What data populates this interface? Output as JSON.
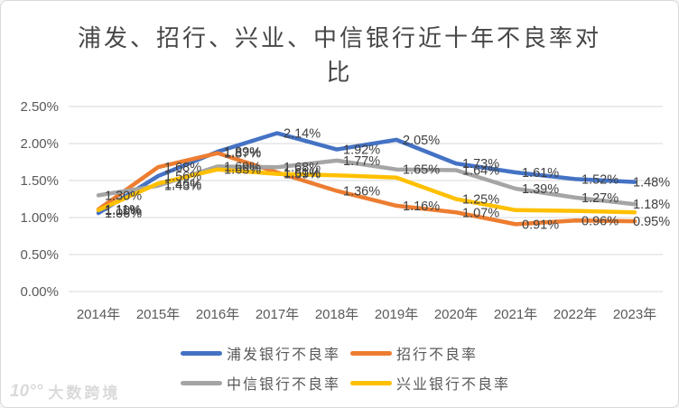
{
  "title": {
    "line1": "浦发、招行、兴业、中信银行近十年不良率对",
    "line2": "比"
  },
  "chart_data": {
    "type": "line",
    "categories": [
      "2014年",
      "2015年",
      "2016年",
      "2017年",
      "2018年",
      "2019年",
      "2020年",
      "2021年",
      "2022年",
      "2023年"
    ],
    "series": [
      {
        "name": "浦发银行不良率",
        "color": "#4472C4",
        "values": [
          1.06,
          1.56,
          1.89,
          2.14,
          1.92,
          2.05,
          1.73,
          1.61,
          1.52,
          1.48
        ]
      },
      {
        "name": "招行不良率",
        "color": "#ED7D31",
        "values": [
          1.11,
          1.68,
          1.87,
          1.61,
          1.36,
          1.16,
          1.07,
          0.91,
          0.96,
          0.95
        ]
      },
      {
        "name": "中信银行不良率",
        "color": "#A5A5A5",
        "values": [
          1.3,
          1.43,
          1.69,
          1.68,
          1.77,
          1.65,
          1.64,
          1.39,
          1.27,
          1.18
        ]
      },
      {
        "name": "兴业银行不良率",
        "color": "#FFC000",
        "values": [
          1.1,
          1.46,
          1.65,
          1.59,
          1.57,
          1.54,
          1.25,
          1.1,
          1.09,
          1.07
        ]
      }
    ],
    "ylim": [
      0,
      2.5
    ],
    "yticks": [
      {
        "v": 0.0,
        "label": "0.00%"
      },
      {
        "v": 0.5,
        "label": "0.50%"
      },
      {
        "v": 1.0,
        "label": "1.00%"
      },
      {
        "v": 1.5,
        "label": "1.50%"
      },
      {
        "v": 2.0,
        "label": "2.00%"
      },
      {
        "v": 2.5,
        "label": "2.50%"
      }
    ],
    "grid": true,
    "legend_position": "bottom",
    "visible_labels": [
      {
        "xi": 0,
        "v": 1.3,
        "text": "1.30%"
      },
      {
        "xi": 0,
        "v": 1.11,
        "text": "1.11%"
      },
      {
        "xi": 0,
        "v": 1.1,
        "text": "1.10%"
      },
      {
        "xi": 0,
        "v": 1.06,
        "text": "1.06%"
      },
      {
        "xi": 1,
        "v": 1.68,
        "text": "1.68%"
      },
      {
        "xi": 1,
        "v": 1.56,
        "text": "1.56%"
      },
      {
        "xi": 1,
        "v": 1.46,
        "text": "1.46%"
      },
      {
        "xi": 1,
        "v": 1.43,
        "text": "1.43%"
      },
      {
        "xi": 2,
        "v": 1.89,
        "text": "1.89%"
      },
      {
        "xi": 2,
        "v": 1.87,
        "text": "1.87%"
      },
      {
        "xi": 2,
        "v": 1.69,
        "text": "1.69%"
      },
      {
        "xi": 2,
        "v": 1.65,
        "text": "1.65%"
      },
      {
        "xi": 3,
        "v": 2.14,
        "text": "2.14%"
      },
      {
        "xi": 3,
        "v": 1.68,
        "text": "1.68%"
      },
      {
        "xi": 3,
        "v": 1.61,
        "text": "1.61%"
      },
      {
        "xi": 3,
        "v": 1.59,
        "text": "1.59%"
      },
      {
        "xi": 4,
        "v": 1.92,
        "text": "1.92%"
      },
      {
        "xi": 4,
        "v": 1.77,
        "text": "1.77%"
      },
      {
        "xi": 4,
        "v": 1.36,
        "text": "1.36%"
      },
      {
        "xi": 5,
        "v": 2.05,
        "text": "2.05%"
      },
      {
        "xi": 5,
        "v": 1.65,
        "text": "1.65%"
      },
      {
        "xi": 5,
        "v": 1.16,
        "text": "1.16%"
      },
      {
        "xi": 6,
        "v": 1.73,
        "text": "1.73%"
      },
      {
        "xi": 6,
        "v": 1.64,
        "text": "1.64%"
      },
      {
        "xi": 6,
        "v": 1.25,
        "text": "1.25%"
      },
      {
        "xi": 6,
        "v": 1.07,
        "text": "1.07%"
      },
      {
        "xi": 7,
        "v": 1.61,
        "text": "1.61%"
      },
      {
        "xi": 7,
        "v": 1.39,
        "text": "1.39%"
      },
      {
        "xi": 7,
        "v": 0.91,
        "text": "0.91%"
      },
      {
        "xi": 8,
        "v": 1.52,
        "text": "1.52%"
      },
      {
        "xi": 8,
        "v": 1.27,
        "text": "1.27%"
      },
      {
        "xi": 8,
        "v": 0.96,
        "text": "0.96%"
      },
      {
        "xi": 9,
        "v": 1.48,
        "text": "1.48%",
        "dx": -9
      },
      {
        "xi": 9,
        "v": 1.18,
        "text": "1.18%",
        "dx": -9
      },
      {
        "xi": 9,
        "v": 0.95,
        "text": "0.95%",
        "dx": -9
      }
    ]
  },
  "colors": {
    "grid": "#d9d9d9",
    "axis_text": "#595959",
    "data_label": "#3f3f3f",
    "title_text": "#474747"
  },
  "watermark": {
    "logo": "10°°",
    "text": "大数跨境"
  }
}
